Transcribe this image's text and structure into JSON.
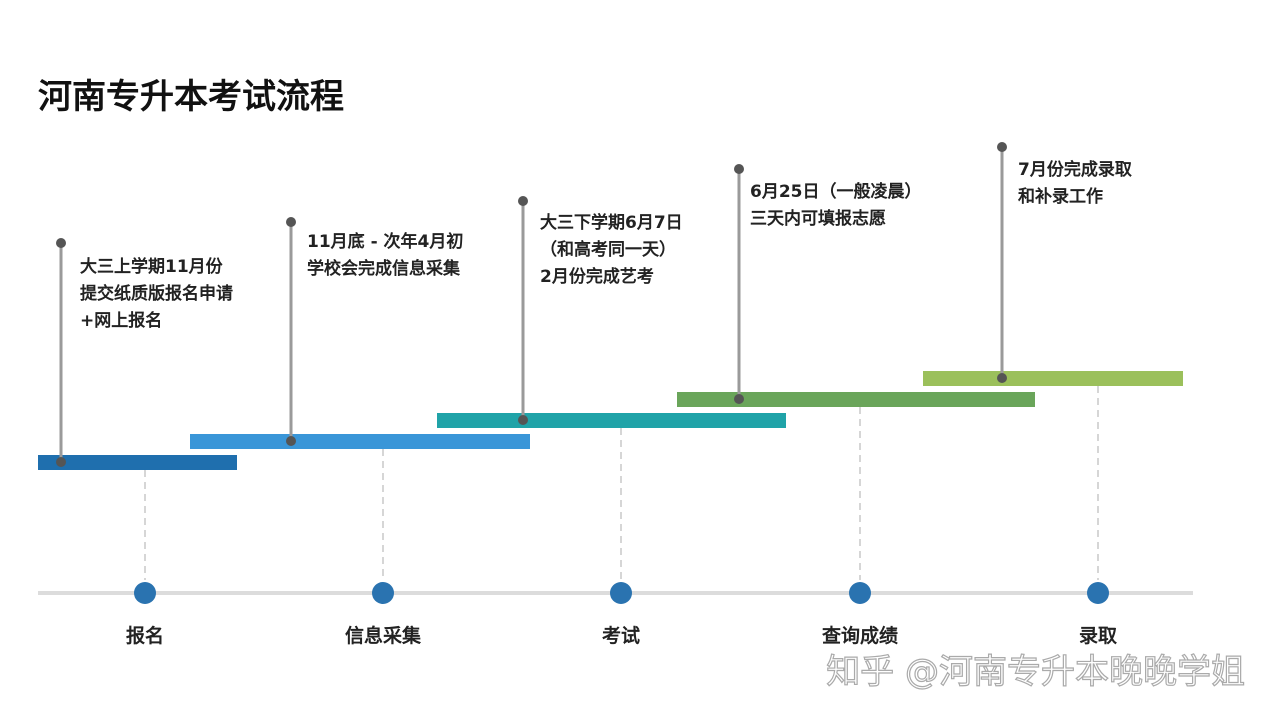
{
  "title": "河南专升本考试流程",
  "stages": [
    {
      "label": "报名",
      "description": [
        "大三上学期11月份",
        "提交纸质版报名申请",
        "+网上报名"
      ]
    },
    {
      "label": "信息采集",
      "description": [
        "11月底 - 次年4月初",
        "学校会完成信息采集"
      ]
    },
    {
      "label": "考试",
      "description": [
        "大三下学期6月7日",
        "（和高考同一天）",
        "2月份完成艺考"
      ]
    },
    {
      "label": "查询成绩",
      "description": [
        "6月25日（一般凌晨）",
        "三天内可填报志愿"
      ]
    },
    {
      "label": "录取",
      "description": [
        "7月份完成录取",
        "和补录工作"
      ]
    }
  ],
  "watermark": "知乎 @河南专升本晚晚学姐"
}
